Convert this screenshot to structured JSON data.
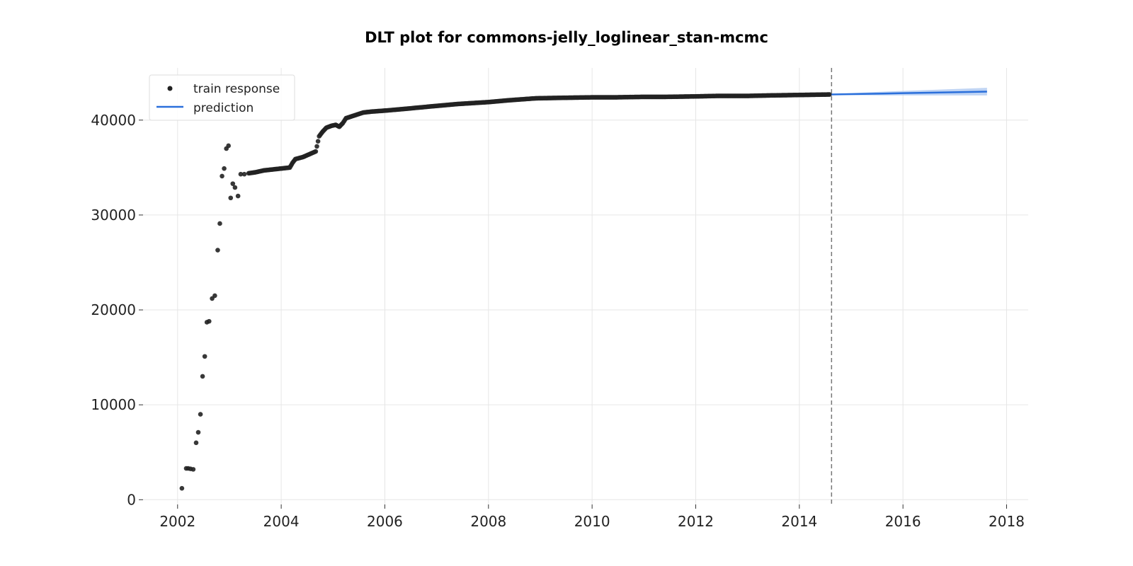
{
  "chart_data": {
    "type": "line",
    "title": "DLT plot for commons-jelly_loglinear_stan-mcmc",
    "xlabel": "",
    "ylabel": "",
    "xlim": [
      "2001-05-01",
      "2018-06-01"
    ],
    "ylim": [
      -500,
      45500
    ],
    "x_ticks": [
      "2002",
      "2004",
      "2006",
      "2008",
      "2010",
      "2012",
      "2014",
      "2016",
      "2018"
    ],
    "y_ticks": [
      "0",
      "10000",
      "20000",
      "30000",
      "40000"
    ],
    "grid": true,
    "legend_position": "top-left",
    "train_end": "2014-08-15",
    "series": [
      {
        "name": "train response",
        "kind": "scatter",
        "color": "#222222",
        "points": [
          [
            "2002-02-01",
            1200
          ],
          [
            "2002-03-01",
            3300
          ],
          [
            "2002-03-15",
            3300
          ],
          [
            "2002-04-01",
            3250
          ],
          [
            "2002-04-20",
            3200
          ],
          [
            "2002-05-10",
            6000
          ],
          [
            "2002-05-25",
            7100
          ],
          [
            "2002-06-10",
            9000
          ],
          [
            "2002-06-25",
            13000
          ],
          [
            "2002-07-10",
            15100
          ],
          [
            "2002-07-25",
            18700
          ],
          [
            "2002-08-10",
            18800
          ],
          [
            "2002-09-01",
            21200
          ],
          [
            "2002-09-20",
            21500
          ],
          [
            "2002-10-10",
            26300
          ],
          [
            "2002-10-25",
            29100
          ],
          [
            "2002-11-10",
            34100
          ],
          [
            "2002-11-25",
            34900
          ],
          [
            "2002-12-10",
            37000
          ],
          [
            "2002-12-25",
            37300
          ],
          [
            "2003-01-10",
            31800
          ],
          [
            "2003-01-25",
            33300
          ],
          [
            "2003-02-10",
            32900
          ],
          [
            "2003-03-01",
            32000
          ],
          [
            "2003-03-20",
            34300
          ],
          [
            "2003-04-15",
            34300
          ],
          [
            "2003-05-15",
            34400
          ],
          [
            "2003-07-01",
            34500
          ],
          [
            "2003-09-01",
            34700
          ],
          [
            "2003-11-01",
            34800
          ],
          [
            "2004-01-01",
            34900
          ],
          [
            "2004-03-01",
            35000
          ],
          [
            "2004-03-20",
            35500
          ],
          [
            "2004-04-10",
            35900
          ],
          [
            "2004-06-01",
            36100
          ],
          [
            "2004-08-01",
            36500
          ],
          [
            "2004-09-01",
            36700
          ],
          [
            "2004-09-25",
            38300
          ],
          [
            "2004-10-20",
            38800
          ],
          [
            "2004-11-15",
            39200
          ],
          [
            "2004-12-20",
            39400
          ],
          [
            "2005-01-20",
            39500
          ],
          [
            "2005-02-15",
            39300
          ],
          [
            "2005-03-10",
            39700
          ],
          [
            "2005-04-01",
            40200
          ],
          [
            "2005-06-01",
            40500
          ],
          [
            "2005-08-01",
            40800
          ],
          [
            "2005-10-01",
            40900
          ],
          [
            "2006-01-01",
            41000
          ],
          [
            "2006-06-01",
            41200
          ],
          [
            "2007-01-01",
            41500
          ],
          [
            "2007-06-01",
            41700
          ],
          [
            "2008-01-01",
            41900
          ],
          [
            "2008-06-01",
            42100
          ],
          [
            "2008-12-01",
            42300
          ],
          [
            "2009-06-01",
            42350
          ],
          [
            "2010-01-01",
            42400
          ],
          [
            "2010-06-01",
            42400
          ],
          [
            "2011-01-01",
            42450
          ],
          [
            "2011-06-01",
            42450
          ],
          [
            "2012-01-01",
            42500
          ],
          [
            "2012-06-01",
            42550
          ],
          [
            "2013-01-01",
            42550
          ],
          [
            "2013-06-01",
            42600
          ],
          [
            "2014-01-01",
            42650
          ],
          [
            "2014-08-01",
            42700
          ]
        ]
      },
      {
        "name": "prediction",
        "kind": "line",
        "color": "#2a6fdb",
        "band_color": "#a9c6f0",
        "points": [
          [
            "2014-08-15",
            42700
          ],
          [
            "2015-08-15",
            42800
          ],
          [
            "2016-08-15",
            42900
          ],
          [
            "2017-08-15",
            43000
          ]
        ],
        "upper": [
          [
            "2014-08-15",
            42750
          ],
          [
            "2015-08-15",
            43000
          ],
          [
            "2016-08-15",
            43200
          ],
          [
            "2017-08-15",
            43400
          ]
        ],
        "lower": [
          [
            "2014-08-15",
            42650
          ],
          [
            "2015-08-15",
            42600
          ],
          [
            "2016-08-15",
            42600
          ],
          [
            "2017-08-15",
            42600
          ]
        ]
      }
    ]
  }
}
